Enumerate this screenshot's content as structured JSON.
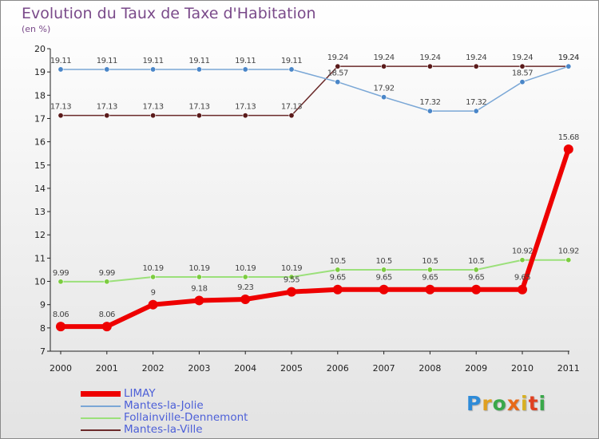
{
  "title": "Evolution du Taux de Taxe d'Habitation",
  "subtitle": "(en %)",
  "logo_text": "Proxiti",
  "colors": {
    "LIMAY": "#ee0000",
    "Mantes-la-Jolie": "#7aa7d6",
    "Follainville-Dennemont": "#9be07a",
    "Mantes-la-Ville": "#6b2a2a",
    "legend_text": "#4d60d8",
    "title": "#7a4a8a"
  },
  "chart_data": {
    "type": "line",
    "title": "Evolution du Taux de Taxe d'Habitation",
    "subtitle": "(en %)",
    "xlabel": "",
    "ylabel": "",
    "categories": [
      "2000",
      "2001",
      "2002",
      "2003",
      "2004",
      "2005",
      "2006",
      "2007",
      "2008",
      "2009",
      "2010",
      "2011"
    ],
    "ylim": [
      7,
      20
    ],
    "yticks": [
      7,
      8,
      9,
      10,
      11,
      12,
      13,
      14,
      15,
      16,
      17,
      18,
      19,
      20
    ],
    "grid": false,
    "legend_position": "bottom-left",
    "series": [
      {
        "name": "LIMAY",
        "values": [
          8.06,
          8.06,
          9,
          9.18,
          9.23,
          9.55,
          9.65,
          9.65,
          9.65,
          9.65,
          9.65,
          15.68
        ],
        "labels": [
          "8.06",
          "8.06",
          "9",
          "9.18",
          "9.23",
          "9.55",
          "9.65",
          "9.65",
          "9.65",
          "9.65",
          "9.65",
          "15.68"
        ]
      },
      {
        "name": "Mantes-la-Jolie",
        "values": [
          19.11,
          19.11,
          19.11,
          19.11,
          19.11,
          19.11,
          18.57,
          17.92,
          17.32,
          17.32,
          18.57,
          19.24
        ],
        "labels": [
          "19.11",
          "19.11",
          "19.11",
          "19.11",
          "19.11",
          "19.11",
          "18.57",
          "17.92",
          "17.32",
          "17.32",
          "18.57",
          "19.24"
        ]
      },
      {
        "name": "Follainville-Dennemont",
        "values": [
          9.99,
          9.99,
          10.19,
          10.19,
          10.19,
          10.19,
          10.5,
          10.5,
          10.5,
          10.5,
          10.92,
          10.92
        ],
        "labels": [
          "9.99",
          "9.99",
          "10.19",
          "10.19",
          "10.19",
          "10.19",
          "10.5",
          "10.5",
          "10.5",
          "10.5",
          "10.92",
          "10.92"
        ]
      },
      {
        "name": "Mantes-la-Ville",
        "values": [
          17.13,
          17.13,
          17.13,
          17.13,
          17.13,
          17.13,
          19.24,
          19.24,
          19.24,
          19.24,
          19.24,
          19.24
        ],
        "labels": [
          "17.13",
          "17.13",
          "17.13",
          "17.13",
          "17.13",
          "17.13",
          "19.24",
          "19.24",
          "19.24",
          "19.24",
          "19.24",
          "19.24"
        ]
      }
    ]
  }
}
